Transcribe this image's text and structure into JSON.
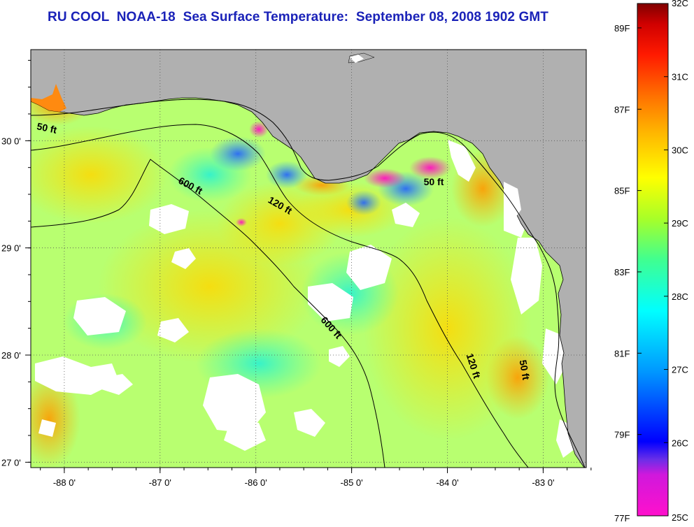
{
  "title": "RU COOL  NOAA-18  Sea Surface Temperature:  September 08, 2008 1902 GMT",
  "map": {
    "x_axis": {
      "ticks": [
        "-88 0'",
        "-87 0'",
        "-86 0'",
        "-85 0'",
        "-84 0'",
        "-83 0'"
      ],
      "values": [
        -88,
        -87,
        -86,
        -85,
        -84,
        -83
      ]
    },
    "y_axis": {
      "ticks": [
        "30 0'",
        "29 0'",
        "28 0'",
        "27 0'"
      ],
      "values": [
        30,
        29,
        28,
        27
      ]
    },
    "lon_range": [
      -88.35,
      -82.55
    ],
    "lat_range": [
      26.95,
      30.85
    ],
    "grid": true,
    "contours": [
      {
        "label": "50 ft"
      },
      {
        "label": "120 ft"
      },
      {
        "label": "600 ft"
      },
      {
        "label": "600 ft"
      },
      {
        "label": "120 ft"
      },
      {
        "label": "50 ft"
      },
      {
        "label": "50 ft"
      }
    ],
    "colors": {
      "land": "#b0b0b0",
      "cloud": "#ffffff",
      "grid": "#333333"
    }
  },
  "colorbar": {
    "range_c": [
      25,
      32
    ],
    "celsius_labels": [
      "32C",
      "31C",
      "30C",
      "29C",
      "28C",
      "27C",
      "26C",
      "25C"
    ],
    "fahrenheit_labels": [
      "89F",
      "87F",
      "85F",
      "83F",
      "81F",
      "79F",
      "77F"
    ],
    "stops": [
      "#ff10cc",
      "#cc20e0",
      "#7030f0",
      "#0000ff",
      "#00a0ff",
      "#00ffff",
      "#40ff90",
      "#a0ff20",
      "#ffff00",
      "#ffb000",
      "#ff7000",
      "#ff2000",
      "#e00000",
      "#800000"
    ]
  }
}
